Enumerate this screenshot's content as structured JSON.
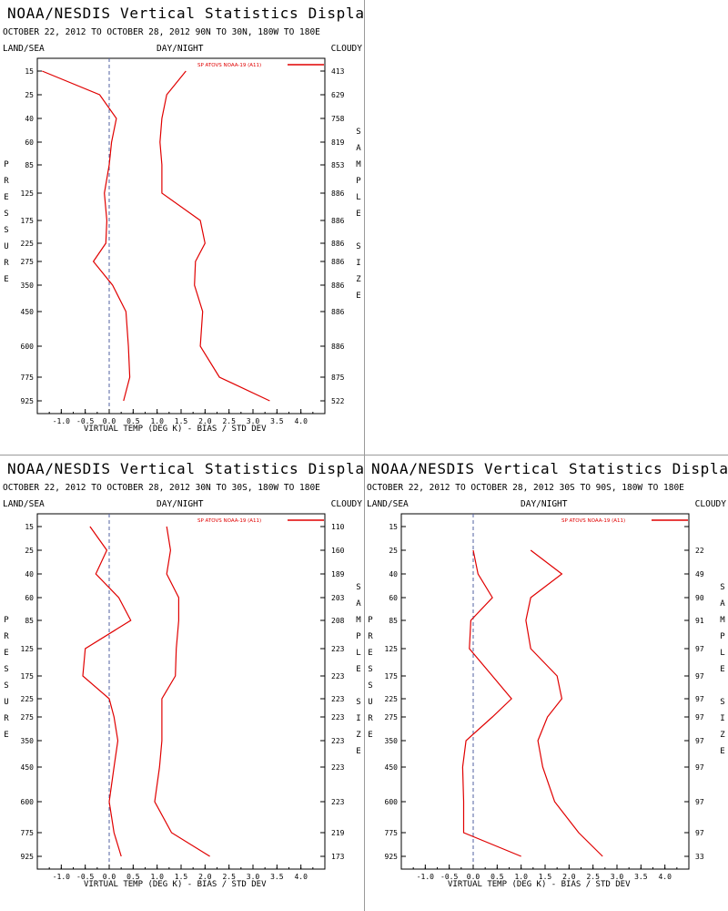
{
  "chart_data": [
    {
      "type": "line",
      "title": "NOAA/NESDIS Vertical Statistics Display",
      "subtitle": "OCTOBER 22, 2012 TO OCTOBER 28, 2012  90N TO 30N, 180W TO 180E",
      "header_left": "LAND/SEA",
      "header_center": "DAY/NIGHT",
      "header_right": "CLOUDY",
      "xlabel": "VIRTUAL TEMP (DEG K) - BIAS / STD DEV",
      "ylabel": "PRESSURE",
      "right_axis_label": "SAMPLE SIZE",
      "legend": "SP ATOVS NOAA-19 (A11)",
      "legend_position": "top-right",
      "xlim": [
        -1.5,
        4.5
      ],
      "x_ticks": [
        -1.0,
        -0.5,
        0.0,
        0.5,
        1.0,
        1.5,
        2.0,
        2.5,
        3.0,
        3.5,
        4.0
      ],
      "pressure_levels": [
        15,
        25,
        40,
        60,
        85,
        125,
        175,
        225,
        275,
        350,
        450,
        600,
        775,
        925
      ],
      "sample_size": [
        "413",
        "629",
        "758",
        "819",
        "853",
        "886",
        "886",
        "886",
        "886",
        "886",
        "886",
        "886",
        "875",
        "522"
      ],
      "series": [
        {
          "role": "bias",
          "values": [
            -1.4,
            -0.2,
            0.15,
            0.05,
            0.0,
            -0.1,
            -0.05,
            -0.07,
            -0.33,
            0.07,
            0.35,
            0.4,
            0.43,
            0.3
          ],
          "color": "#e00000"
        },
        {
          "role": "std_dev",
          "values": [
            1.6,
            1.2,
            1.1,
            1.06,
            1.1,
            1.1,
            1.9,
            2.0,
            1.8,
            1.78,
            1.95,
            1.9,
            2.3,
            3.35
          ],
          "color": "#e00000"
        }
      ]
    },
    {
      "type": "line",
      "title": "NOAA/NESDIS Vertical Statistics Display",
      "subtitle": "OCTOBER 22, 2012 TO OCTOBER 28, 2012  30N TO 30S, 180W TO 180E",
      "header_left": "LAND/SEA",
      "header_center": "DAY/NIGHT",
      "header_right": "CLOUDY",
      "xlabel": "VIRTUAL TEMP (DEG K) - BIAS / STD DEV",
      "ylabel": "PRESSURE",
      "right_axis_label": "SAMPLE SIZE",
      "legend": "SP ATOVS NOAA-19 (A11)",
      "legend_position": "top-right",
      "xlim": [
        -1.5,
        4.5
      ],
      "x_ticks": [
        -1.0,
        -0.5,
        0.0,
        0.5,
        1.0,
        1.5,
        2.0,
        2.5,
        3.0,
        3.5,
        4.0
      ],
      "pressure_levels": [
        15,
        25,
        40,
        60,
        85,
        125,
        175,
        225,
        275,
        350,
        450,
        600,
        775,
        925
      ],
      "sample_size": [
        "110",
        "160",
        "189",
        "203",
        "208",
        "223",
        "223",
        "223",
        "223",
        "223",
        "223",
        "223",
        "219",
        "173"
      ],
      "series": [
        {
          "role": "bias",
          "values": [
            -0.4,
            -0.05,
            -0.28,
            0.2,
            0.45,
            -0.5,
            -0.55,
            0.0,
            0.1,
            0.18,
            0.1,
            0.0,
            0.1,
            0.25
          ],
          "color": "#e00000"
        },
        {
          "role": "std_dev",
          "values": [
            1.2,
            1.28,
            1.2,
            1.45,
            1.45,
            1.4,
            1.38,
            1.1,
            1.1,
            1.1,
            1.05,
            0.95,
            1.3,
            2.1
          ],
          "color": "#e00000"
        }
      ]
    },
    {
      "type": "line",
      "title": "NOAA/NESDIS Vertical Statistics Display",
      "subtitle": "OCTOBER 22, 2012 TO OCTOBER 28, 2012  30S TO 90S, 180W TO 180E",
      "header_left": "LAND/SEA",
      "header_center": "DAY/NIGHT",
      "header_right": "CLOUDY",
      "xlabel": "VIRTUAL TEMP (DEG K) - BIAS / STD DEV",
      "ylabel": "PRESSURE",
      "right_axis_label": "SAMPLE SIZE",
      "legend": "SP ATOVS NOAA-19 (A11)",
      "legend_position": "top-right",
      "xlim": [
        -1.5,
        4.5
      ],
      "x_ticks": [
        -1.0,
        -0.5,
        0.0,
        0.5,
        1.0,
        1.5,
        2.0,
        2.5,
        3.0,
        3.5,
        4.0
      ],
      "pressure_levels": [
        15,
        25,
        40,
        60,
        85,
        125,
        175,
        225,
        275,
        350,
        450,
        600,
        775,
        925
      ],
      "sample_size": [
        "",
        "22",
        "49",
        "90",
        "91",
        "97",
        "97",
        "97",
        "97",
        "97",
        "97",
        "97",
        "97",
        "33"
      ],
      "series": [
        {
          "role": "bias",
          "values": [
            null,
            0.0,
            0.1,
            0.4,
            -0.05,
            -0.08,
            0.4,
            0.8,
            0.4,
            -0.15,
            -0.22,
            -0.2,
            -0.2,
            1.0
          ],
          "color": "#e00000"
        },
        {
          "role": "std_dev",
          "values": [
            null,
            1.2,
            1.85,
            1.2,
            1.1,
            1.2,
            1.75,
            1.85,
            1.55,
            1.35,
            1.45,
            1.7,
            2.2,
            2.7
          ],
          "color": "#e00000"
        }
      ]
    }
  ]
}
